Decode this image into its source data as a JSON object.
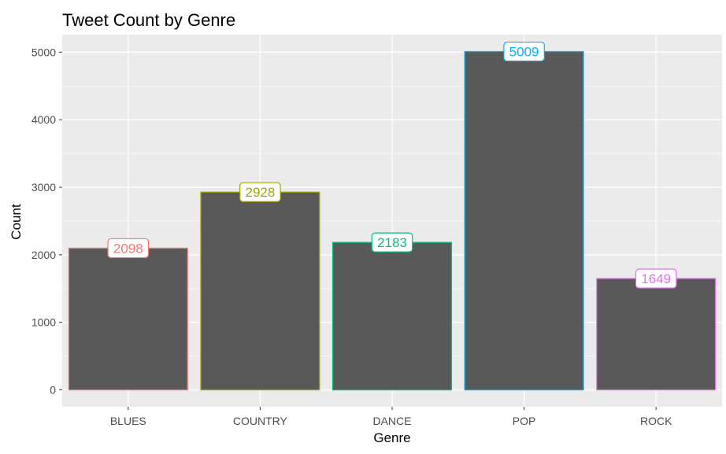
{
  "chart_data": {
    "type": "bar",
    "title": "Tweet Count by Genre",
    "xlabel": "Genre",
    "ylabel": "Count",
    "categories": [
      "BLUES",
      "COUNTRY",
      "DANCE",
      "POP",
      "ROCK"
    ],
    "values": [
      2098,
      2928,
      2183,
      5009,
      1649
    ],
    "data_labels": [
      "2098",
      "2928",
      "2183",
      "5009",
      "1649"
    ],
    "ylim": [
      -250,
      5260
    ],
    "yticks": [
      0,
      1000,
      2000,
      3000,
      4000,
      5000
    ],
    "ytick_labels": [
      "0",
      "1000",
      "2000",
      "3000",
      "4000",
      "5000"
    ],
    "grid": true,
    "legend": "none",
    "bar_fill": "#595959",
    "panel_background": "#ebebeb",
    "outline_colors": [
      "#f8766d",
      "#a3a500",
      "#00bf7d",
      "#00b0f6",
      "#e76bf3"
    ]
  }
}
